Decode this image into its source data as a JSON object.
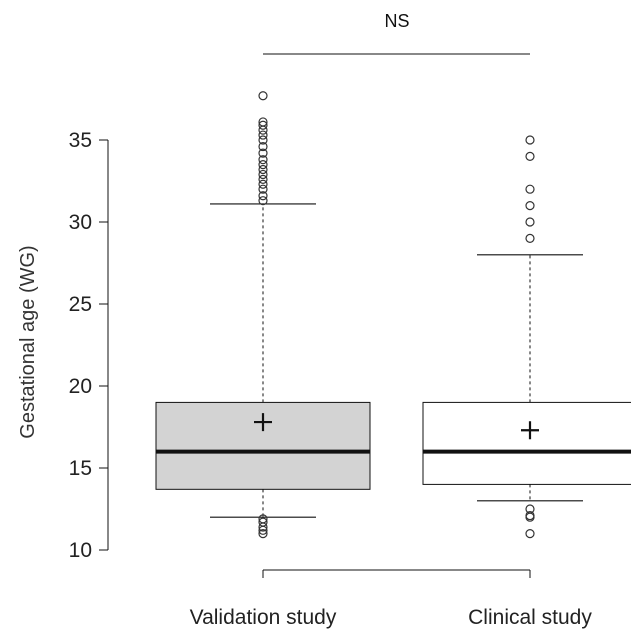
{
  "chart_data": {
    "type": "box",
    "title": "",
    "ylabel": "Gestational age (WG)",
    "xlabel": "",
    "ylim": [
      10,
      37.5
    ],
    "yticks": [
      10,
      15,
      20,
      25,
      30,
      35
    ],
    "significance_label": "NS",
    "series": [
      {
        "name": "Validation study",
        "fill": "#d3d3d3",
        "whisker_low": 12,
        "q1": 13.7,
        "median": 16,
        "q3": 19,
        "whisker_high": 31.1,
        "mean": 17.8,
        "outliers_high": [
          31.3,
          31.6,
          32.0,
          32.3,
          32.6,
          32.9,
          33.2,
          33.5,
          33.8,
          34.2,
          34.6,
          35.0,
          35.3,
          35.6,
          35.9,
          36.1,
          37.7
        ],
        "outliers_low": [
          11.9,
          11.7,
          11.4,
          11.2,
          11.0
        ]
      },
      {
        "name": "Clinical study",
        "fill": "#ffffff",
        "whisker_low": 13,
        "q1": 14,
        "median": 16,
        "q3": 19,
        "whisker_high": 28,
        "mean": 17.3,
        "outliers_high": [
          29,
          30,
          31,
          32,
          34,
          35
        ],
        "outliers_low": [
          12.5,
          12.1,
          12.0,
          11
        ]
      }
    ]
  }
}
